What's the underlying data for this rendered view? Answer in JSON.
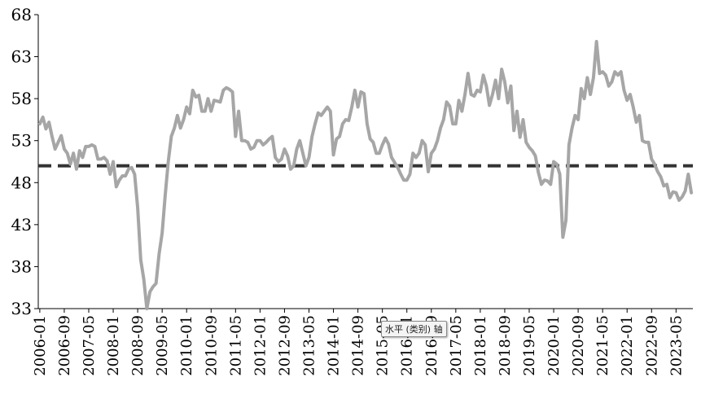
{
  "chart_data": {
    "type": "line",
    "title": "",
    "xlabel": "",
    "ylabel": "",
    "ylim": [
      33,
      68
    ],
    "y_ticks": [
      33,
      38,
      43,
      48,
      53,
      58,
      63,
      68
    ],
    "x_tick_labels": [
      "2006-01",
      "2006-09",
      "2007-05",
      "2008-01",
      "2008-09",
      "2009-05",
      "2010-01",
      "2010-09",
      "2011-05",
      "2012-01",
      "2012-09",
      "2013-05",
      "2014-01",
      "2014-09",
      "2015-05",
      "2016-01",
      "2016-09",
      "2017-05",
      "2018-01",
      "2018-09",
      "2019-05",
      "2020-01",
      "2020-09",
      "2021-05",
      "2022-01",
      "2022-09",
      "2023-05"
    ],
    "grid": false,
    "legend": "none",
    "reference_line": {
      "value": 50,
      "style": "dashed",
      "color": "#333333"
    },
    "series_color": "#a6a6a6",
    "series": [
      {
        "x_start": "2006-01",
        "step": "month",
        "values": [
          55.0,
          55.8,
          54.4,
          55.2,
          53.5,
          52.0,
          52.8,
          53.6,
          52.0,
          51.5,
          50.2,
          51.5,
          49.6,
          51.8,
          51.0,
          52.3,
          52.3,
          52.5,
          52.3,
          50.8,
          50.8,
          51.0,
          50.6,
          49.0,
          50.5,
          47.5,
          48.3,
          48.8,
          48.8,
          49.6,
          49.8,
          49.0,
          45.0,
          38.8,
          36.5,
          33.0,
          35.0,
          35.6,
          36.0,
          39.5,
          42.0,
          46.5,
          50.5,
          53.5,
          54.5,
          56.0,
          54.5,
          55.5,
          57.0,
          56.2,
          59.0,
          58.2,
          58.4,
          56.5,
          56.5,
          58.0,
          56.5,
          57.8,
          57.7,
          57.6,
          59.0,
          59.3,
          59.1,
          58.8,
          53.5,
          56.5,
          53.0,
          53.0,
          52.8,
          52.0,
          52.2,
          53.0,
          53.0,
          52.5,
          52.8,
          53.2,
          53.5,
          51.0,
          50.5,
          50.8,
          52.0,
          51.2,
          49.6,
          50.0,
          52.0,
          53.0,
          51.5,
          50.0,
          51.0,
          53.5,
          55.0,
          56.3,
          56.0,
          56.5,
          57.0,
          56.5,
          51.3,
          53.2,
          53.5,
          55.0,
          55.5,
          55.4,
          57.0,
          59.0,
          57.0,
          58.8,
          58.6,
          55.0,
          53.2,
          52.8,
          51.5,
          51.5,
          52.5,
          53.3,
          52.6,
          51.0,
          50.4,
          49.8,
          49.0,
          48.3,
          48.3,
          49.0,
          51.5,
          51.0,
          51.5,
          53.0,
          52.5,
          49.3,
          51.5,
          52.0,
          53.0,
          54.5,
          55.5,
          57.6,
          57.1,
          55.0,
          55.0,
          57.8,
          56.5,
          58.5,
          61.0,
          58.5,
          58.3,
          59.0,
          58.8,
          60.8,
          59.5,
          57.2,
          58.5,
          60.2,
          58.0,
          61.5,
          60.0,
          57.5,
          59.5,
          54.2,
          56.5,
          53.4,
          55.5,
          52.8,
          52.2,
          51.8,
          51.2,
          49.2,
          47.8,
          48.3,
          48.2,
          47.8,
          50.5,
          50.2,
          49.0,
          41.5,
          43.5,
          52.5,
          54.5,
          56.0,
          55.5,
          59.2,
          58.0,
          60.5,
          58.5,
          60.5,
          64.8,
          61.0,
          61.2,
          60.8,
          59.5,
          60.0,
          61.2,
          60.8,
          61.2,
          59.0,
          57.8,
          58.5,
          57.0,
          55.2,
          56.0,
          53.0,
          52.8,
          52.8,
          50.8,
          50.2,
          49.3,
          48.7,
          47.6,
          47.8,
          46.2,
          46.9,
          46.8,
          45.9,
          46.3,
          47.0,
          49.0,
          46.8
        ]
      }
    ]
  },
  "overlay": {
    "tooltip_text": "水平 (类别) 轴"
  }
}
